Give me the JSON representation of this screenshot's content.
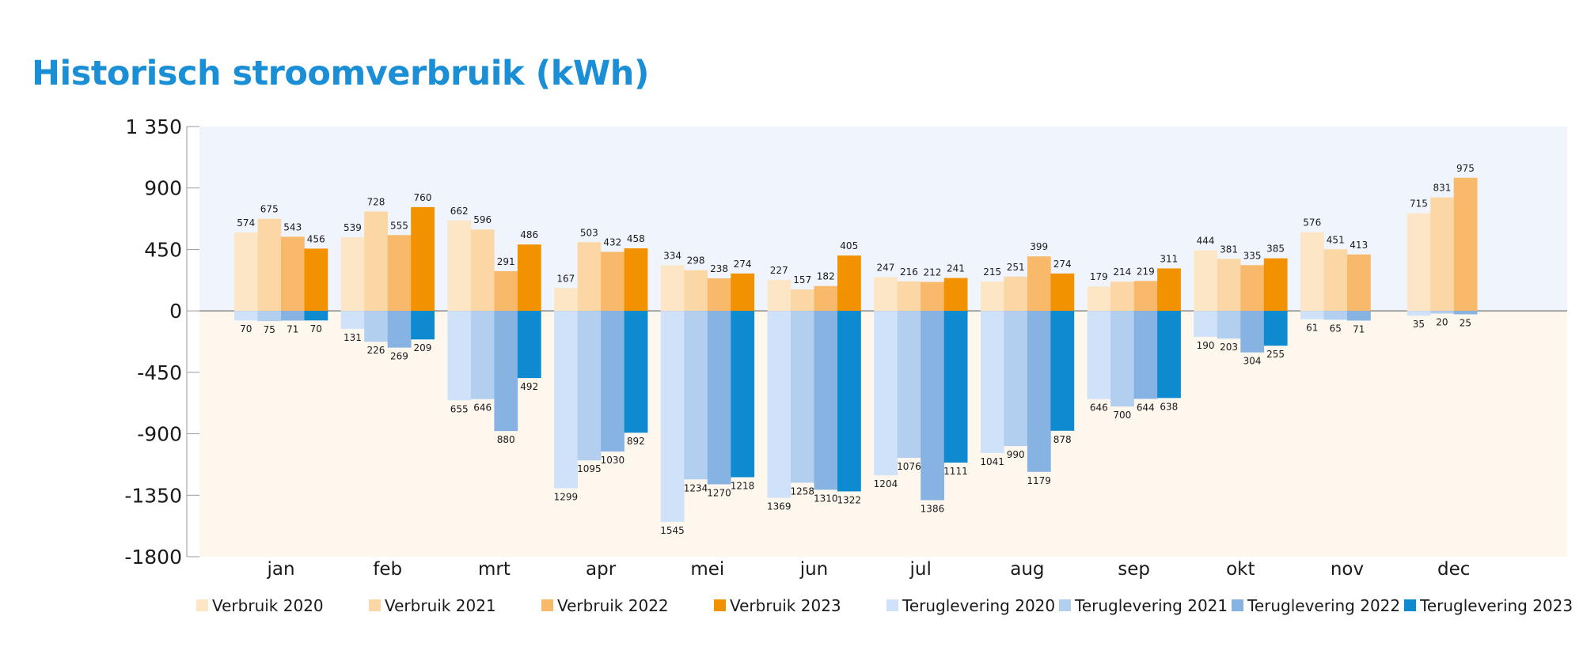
{
  "chart_data": {
    "type": "bar",
    "title": "Historisch stroomverbruik (kWh)",
    "xlabel": "",
    "ylabel": "",
    "ylim": [
      -1800,
      1350
    ],
    "yticks": [
      1350,
      900,
      450,
      0,
      -450,
      -900,
      -1350,
      -1800
    ],
    "ytick_labels": [
      "1 350",
      "900",
      "450",
      "0",
      "-450",
      "-900",
      "-1350",
      "-1800"
    ],
    "categories": [
      "jan",
      "feb",
      "mrt",
      "apr",
      "mei",
      "jun",
      "jul",
      "aug",
      "sep",
      "okt",
      "nov",
      "dec"
    ],
    "legend_position": "bottom",
    "grid": false,
    "background_positive": "#f0f5fd",
    "background_negative": "#fef7ee",
    "series": [
      {
        "name": "Verbruik 2020",
        "color": "#fde6c6",
        "values": [
          574,
          539,
          662,
          167,
          334,
          227,
          247,
          215,
          179,
          444,
          576,
          715
        ]
      },
      {
        "name": "Verbruik 2021",
        "color": "#fcd7a6",
        "values": [
          675,
          728,
          596,
          503,
          298,
          157,
          216,
          251,
          214,
          381,
          451,
          831
        ]
      },
      {
        "name": "Verbruik 2022",
        "color": "#f9b96a",
        "values": [
          543,
          555,
          291,
          432,
          238,
          182,
          212,
          399,
          219,
          335,
          413,
          975
        ]
      },
      {
        "name": "Verbruik 2023",
        "color": "#f39200",
        "values": [
          456,
          760,
          486,
          458,
          274,
          405,
          241,
          274,
          311,
          385,
          null,
          null
        ]
      },
      {
        "name": "Teruglevering 2020",
        "color": "#cfe2fa",
        "values": [
          -70,
          -131,
          -655,
          -1299,
          -1545,
          -1369,
          -1204,
          -1041,
          -646,
          -190,
          -61,
          -35
        ]
      },
      {
        "name": "Teruglevering 2021",
        "color": "#b3cfef",
        "values": [
          -75,
          -226,
          -646,
          -1095,
          -1234,
          -1258,
          -1076,
          -990,
          -700,
          -203,
          -65,
          -20
        ]
      },
      {
        "name": "Teruglevering 2022",
        "color": "#86b3e2",
        "values": [
          -71,
          -269,
          -880,
          -1030,
          -1270,
          -1310,
          -1386,
          -1179,
          -644,
          -304,
          -71,
          -25
        ]
      },
      {
        "name": "Teruglevering 2023",
        "color": "#0d8ad0",
        "values": [
          -70,
          -209,
          -492,
          -892,
          -1218,
          -1322,
          -1111,
          -878,
          -638,
          -255,
          null,
          null
        ]
      }
    ]
  }
}
